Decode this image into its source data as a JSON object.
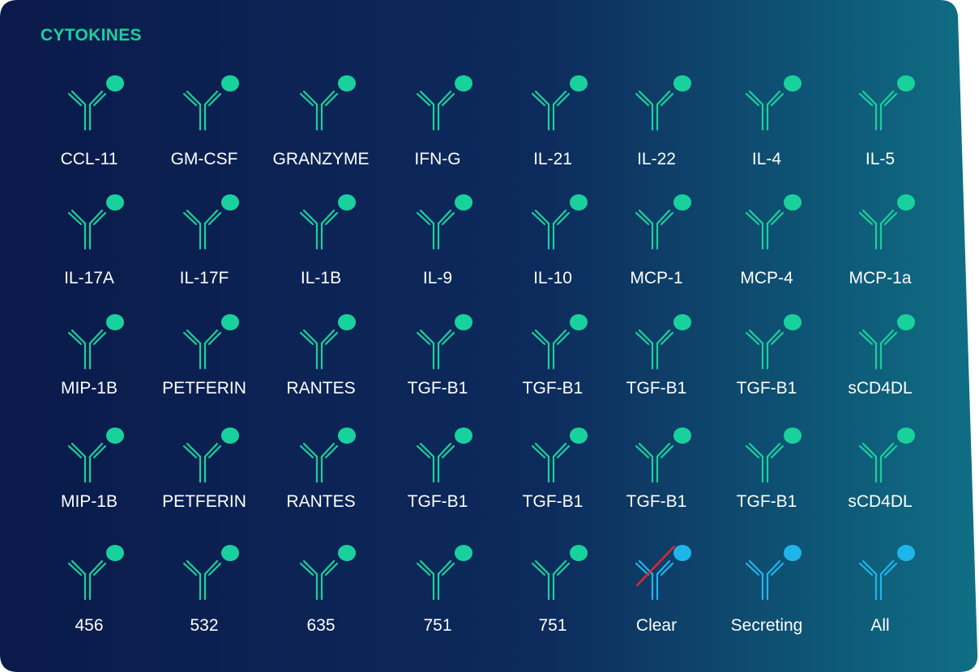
{
  "panel": {
    "title": "CYTOKINES",
    "colors": {
      "bg_left": "#0a1a4a",
      "bg_mid": "#0d2a5c",
      "bg_right": "#0f6f84",
      "title": "#19d19c",
      "antibody": "#19d19c",
      "antibody_alt": "#1eb6ea",
      "label": "#ffffff",
      "strike": "#e0282e"
    }
  },
  "rows": [
    {
      "items": [
        {
          "label": "CCL-11",
          "icon": "antibody-icon"
        },
        {
          "label": "GM-CSF",
          "icon": "antibody-icon"
        },
        {
          "label": "GRANZYME",
          "icon": "antibody-icon"
        },
        {
          "label": "IFN-G",
          "icon": "antibody-icon"
        },
        {
          "label": "IL-21",
          "icon": "antibody-icon"
        },
        {
          "label": "IL-22",
          "icon": "antibody-icon"
        },
        {
          "label": "IL-4",
          "icon": "antibody-icon"
        },
        {
          "label": "IL-5",
          "icon": "antibody-icon"
        }
      ]
    },
    {
      "items": [
        {
          "label": "IL-17A",
          "icon": "antibody-icon"
        },
        {
          "label": "IL-17F",
          "icon": "antibody-icon"
        },
        {
          "label": "IL-1B",
          "icon": "antibody-icon"
        },
        {
          "label": "IL-9",
          "icon": "antibody-icon"
        },
        {
          "label": "IL-10",
          "icon": "antibody-icon"
        },
        {
          "label": "MCP-1",
          "icon": "antibody-icon"
        },
        {
          "label": "MCP-4",
          "icon": "antibody-icon"
        },
        {
          "label": "MCP-1a",
          "icon": "antibody-icon"
        }
      ]
    },
    {
      "items": [
        {
          "label": "MIP-1B",
          "icon": "antibody-icon"
        },
        {
          "label": "PETFERIN",
          "icon": "antibody-icon"
        },
        {
          "label": "RANTES",
          "icon": "antibody-icon"
        },
        {
          "label": "TGF-B1",
          "icon": "antibody-icon"
        },
        {
          "label": "TGF-B1",
          "icon": "antibody-icon"
        },
        {
          "label": "TGF-B1",
          "icon": "antibody-icon"
        },
        {
          "label": "TGF-B1",
          "icon": "antibody-icon"
        },
        {
          "label": "sCD4DL",
          "icon": "antibody-icon"
        }
      ]
    },
    {
      "items": [
        {
          "label": "MIP-1B",
          "icon": "antibody-icon"
        },
        {
          "label": "PETFERIN",
          "icon": "antibody-icon"
        },
        {
          "label": "RANTES",
          "icon": "antibody-icon"
        },
        {
          "label": "TGF-B1",
          "icon": "antibody-icon"
        },
        {
          "label": "TGF-B1",
          "icon": "antibody-icon"
        },
        {
          "label": "TGF-B1",
          "icon": "antibody-icon"
        },
        {
          "label": "TGF-B1",
          "icon": "antibody-icon"
        },
        {
          "label": "sCD4DL",
          "icon": "antibody-icon"
        }
      ]
    },
    {
      "items": [
        {
          "label": "456",
          "icon": "antibody-icon"
        },
        {
          "label": "532",
          "icon": "antibody-icon"
        },
        {
          "label": "635",
          "icon": "antibody-icon"
        },
        {
          "label": "751",
          "icon": "antibody-icon"
        },
        {
          "label": "751",
          "icon": "antibody-icon"
        },
        {
          "label": "Clear",
          "icon": "antibody-clear-icon"
        },
        {
          "label": "Secreting",
          "icon": "antibody-secreting-icon"
        },
        {
          "label": "All",
          "icon": "antibody-all-icon"
        }
      ]
    }
  ]
}
